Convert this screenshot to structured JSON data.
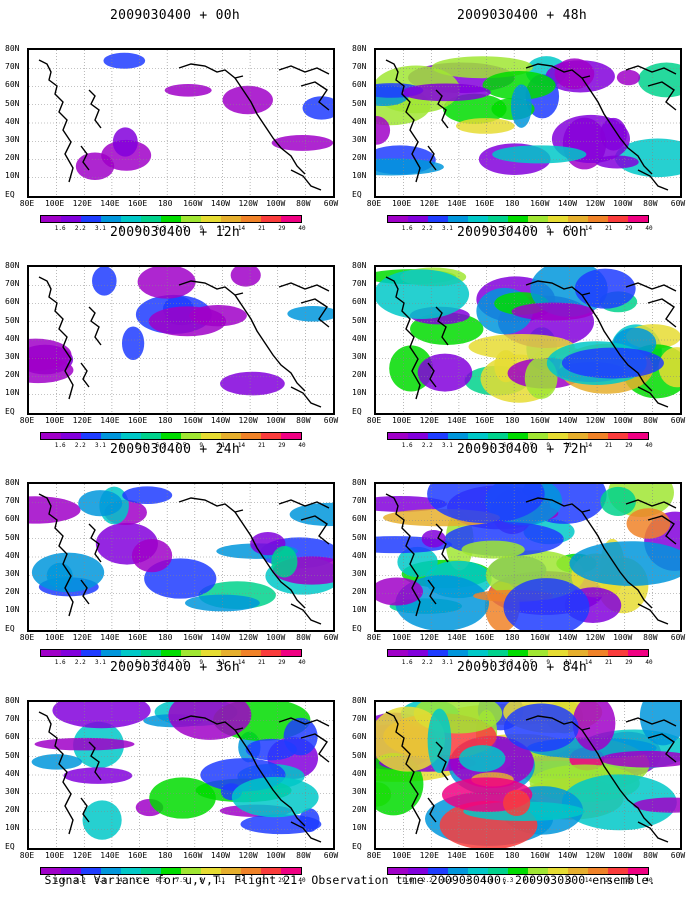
{
  "panels": [
    {
      "title": "2009030400 + 00h",
      "column": "left",
      "row": 0,
      "intensity": 0.1
    },
    {
      "title": "2009030400 + 12h",
      "column": "left",
      "row": 1,
      "intensity": 0.25
    },
    {
      "title": "2009030400 + 24h",
      "column": "left",
      "row": 2,
      "intensity": 0.4
    },
    {
      "title": "2009030400 + 36h",
      "column": "left",
      "row": 3,
      "intensity": 0.5
    },
    {
      "title": "2009030400 + 48h",
      "column": "right",
      "row": 0,
      "intensity": 0.6
    },
    {
      "title": "2009030400 + 60h",
      "column": "right",
      "row": 1,
      "intensity": 0.7
    },
    {
      "title": "2009030400 + 72h",
      "column": "right",
      "row": 2,
      "intensity": 0.8
    },
    {
      "title": "2009030400 + 84h",
      "column": "right",
      "row": 3,
      "intensity": 0.95
    }
  ],
  "lat_labels": [
    "80N",
    "70N",
    "60N",
    "50N",
    "40N",
    "30N",
    "20N",
    "10N",
    "EQ"
  ],
  "lon_labels": [
    "80E",
    "100E",
    "120E",
    "140E",
    "160E",
    "180",
    "160W",
    "140W",
    "120W",
    "100W",
    "80W",
    "60W"
  ],
  "colorbar": {
    "labels": [
      "1.6",
      "2.2",
      "3.1",
      "4",
      "5.1",
      "6.3",
      "7.5",
      "9",
      "11",
      "14",
      "21",
      "29",
      "40"
    ],
    "colors": [
      "#a000c8",
      "#8200dc",
      "#1e3cff",
      "#0096dc",
      "#00c8c8",
      "#00d28c",
      "#00dc00",
      "#a0e632",
      "#e6dc32",
      "#e6af2d",
      "#f08228",
      "#fa3c3c",
      "#f00082"
    ]
  },
  "caption": "Signal Variance for u,v,T. Flight 21. Observation time 2009030400. 2009030300 ensemble."
}
